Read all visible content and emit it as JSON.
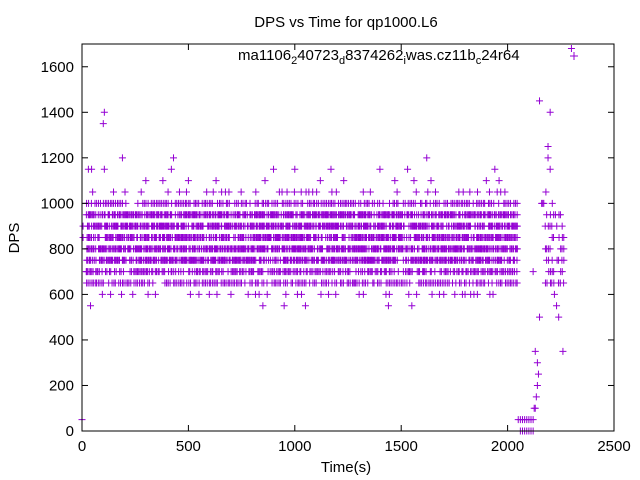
{
  "chart_data": {
    "type": "scatter",
    "title": "DPS vs Time for qp1000.L6",
    "xlabel": "Time(s)",
    "ylabel": "DPS",
    "xlim": [
      0,
      2500
    ],
    "ylim": [
      0,
      1700
    ],
    "xticks": [
      0,
      500,
      1000,
      1500,
      2000,
      2500
    ],
    "yticks": [
      0,
      200,
      400,
      600,
      800,
      1000,
      1200,
      1400,
      1600
    ],
    "grid": false,
    "legend_position": "top-right",
    "marker": "plus",
    "series": [
      {
        "name": "ma1106_240723_d8374262_iwas.cz11b_c24r64",
        "name_parts": [
          {
            "text": "ma1106",
            "shift": "base"
          },
          {
            "text": "2",
            "shift": "sub"
          },
          {
            "text": "40723",
            "shift": "base"
          },
          {
            "text": "d",
            "shift": "sub"
          },
          {
            "text": "8374262",
            "shift": "base"
          },
          {
            "text": "i",
            "shift": "sub"
          },
          {
            "text": "was.cz11b",
            "shift": "base"
          },
          {
            "text": "c",
            "shift": "sub"
          },
          {
            "text": "24r64",
            "shift": "base"
          }
        ],
        "color": "#9400d3",
        "band_levels": [
          650,
          700,
          750,
          800,
          850,
          900,
          950,
          1000
        ],
        "band_x_range": [
          20,
          2045
        ],
        "band_x_range_late": [
          2175,
          2270
        ],
        "points": [
          [
            0,
            50
          ],
          [
            5,
            900
          ],
          [
            5,
            850
          ],
          [
            20,
            700
          ],
          [
            30,
            1150
          ],
          [
            40,
            550
          ],
          [
            45,
            1150
          ],
          [
            50,
            1050
          ],
          [
            100,
            1350
          ],
          [
            105,
            1400
          ],
          [
            105,
            1150
          ],
          [
            190,
            1200
          ],
          [
            300,
            1100
          ],
          [
            345,
            600
          ],
          [
            380,
            1100
          ],
          [
            405,
            650
          ],
          [
            420,
            1150
          ],
          [
            430,
            1200
          ],
          [
            500,
            1100
          ],
          [
            630,
            1100
          ],
          [
            700,
            600
          ],
          [
            800,
            650
          ],
          [
            850,
            550
          ],
          [
            860,
            1100
          ],
          [
            900,
            1150
          ],
          [
            950,
            550
          ],
          [
            1000,
            1150
          ],
          [
            1050,
            550
          ],
          [
            1120,
            1100
          ],
          [
            1170,
            1150
          ],
          [
            1230,
            1100
          ],
          [
            1280,
            650
          ],
          [
            1400,
            1150
          ],
          [
            1440,
            550
          ],
          [
            1470,
            1100
          ],
          [
            1530,
            1150
          ],
          [
            1550,
            550
          ],
          [
            1560,
            1100
          ],
          [
            1620,
            1200
          ],
          [
            1640,
            1100
          ],
          [
            1700,
            600
          ],
          [
            1800,
            600
          ],
          [
            1900,
            1100
          ],
          [
            1940,
            1150
          ],
          [
            1960,
            1100
          ],
          [
            1990,
            650
          ],
          [
            2050,
            50
          ],
          [
            2060,
            50
          ],
          [
            2070,
            50
          ],
          [
            2080,
            50
          ],
          [
            2090,
            50
          ],
          [
            2100,
            50
          ],
          [
            2110,
            50
          ],
          [
            2120,
            50
          ],
          [
            2060,
            0
          ],
          [
            2070,
            0
          ],
          [
            2080,
            0
          ],
          [
            2090,
            0
          ],
          [
            2100,
            0
          ],
          [
            2110,
            0
          ],
          [
            2120,
            0
          ],
          [
            2120,
            700
          ],
          [
            2125,
            100
          ],
          [
            2130,
            100
          ],
          [
            2135,
            150
          ],
          [
            2140,
            200
          ],
          [
            2130,
            350
          ],
          [
            2140,
            300
          ],
          [
            2145,
            250
          ],
          [
            2150,
            500
          ],
          [
            2150,
            1450
          ],
          [
            2160,
            1000
          ],
          [
            2165,
            1000
          ],
          [
            2170,
            1000
          ],
          [
            2180,
            1050
          ],
          [
            2190,
            1200
          ],
          [
            2190,
            1250
          ],
          [
            2200,
            1150
          ],
          [
            2200,
            1400
          ],
          [
            2210,
            1000
          ],
          [
            2220,
            600
          ],
          [
            2230,
            550
          ],
          [
            2240,
            500
          ],
          [
            2240,
            650
          ],
          [
            2260,
            350
          ],
          [
            2300,
            1680
          ]
        ]
      }
    ]
  }
}
